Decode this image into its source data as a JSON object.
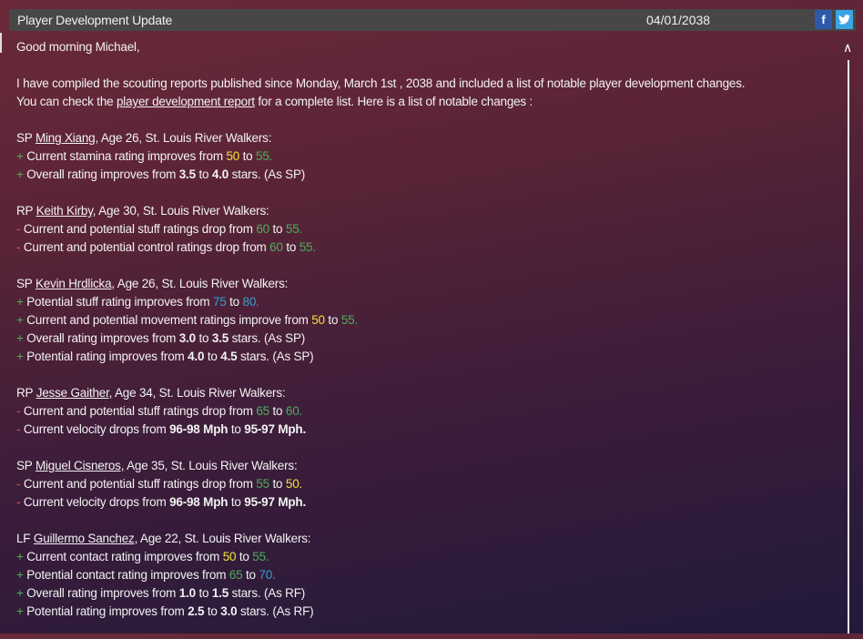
{
  "header": {
    "title": "Player Development Update",
    "date": "04/01/2038",
    "facebook_icon": "f",
    "twitter_icon": "t"
  },
  "colors": {
    "yellow": "#f2e23a",
    "green": "#4cae5a",
    "blue": "#3a9cc8",
    "minus": "#e05050",
    "plus": "#4caf50",
    "header_bg": "#474747"
  },
  "greeting": "Good morning Michael,",
  "intro": {
    "line1": "I have compiled the scouting reports published since Monday, March 1st , 2038 and included a list of notable player development changes.",
    "line2_pre": "You can check the ",
    "line2_link": "player development report",
    "line2_post": " for a complete list. Here is a list of notable changes :"
  },
  "players": [
    {
      "pos": "SP",
      "name": "Ming Xiang,",
      "info": " Age 26, St. Louis River Walkers:",
      "changes": [
        {
          "sign": "+",
          "segs": [
            {
              "t": "Current stamina rating improves from ",
              "s": ""
            },
            {
              "t": "50",
              "s": "y"
            },
            {
              "t": " to ",
              "s": ""
            },
            {
              "t": "55.",
              "s": "g"
            }
          ]
        },
        {
          "sign": "+",
          "segs": [
            {
              "t": "Overall rating improves from ",
              "s": ""
            },
            {
              "t": "3.5",
              "s": "bold"
            },
            {
              "t": " to ",
              "s": ""
            },
            {
              "t": "4.0",
              "s": "bold"
            },
            {
              "t": " stars. (As SP)",
              "s": ""
            }
          ]
        }
      ]
    },
    {
      "pos": "RP",
      "name": "Keith Kirby,",
      "info": " Age 30, St. Louis River Walkers:",
      "changes": [
        {
          "sign": "-",
          "segs": [
            {
              "t": "Current and potential stuff ratings drop from ",
              "s": ""
            },
            {
              "t": "60",
              "s": "g"
            },
            {
              "t": " to ",
              "s": ""
            },
            {
              "t": "55.",
              "s": "g"
            }
          ]
        },
        {
          "sign": "-",
          "segs": [
            {
              "t": "Current and potential control ratings drop from ",
              "s": ""
            },
            {
              "t": "60",
              "s": "g"
            },
            {
              "t": " to ",
              "s": ""
            },
            {
              "t": "55.",
              "s": "g"
            }
          ]
        }
      ]
    },
    {
      "pos": "SP",
      "name": "Kevin Hrdlicka,",
      "info": " Age 26, St. Louis River Walkers:",
      "changes": [
        {
          "sign": "+",
          "segs": [
            {
              "t": "Potential stuff rating improves from ",
              "s": ""
            },
            {
              "t": "75",
              "s": "b"
            },
            {
              "t": " to ",
              "s": ""
            },
            {
              "t": "80.",
              "s": "b"
            }
          ]
        },
        {
          "sign": "+",
          "segs": [
            {
              "t": "Current and potential movement ratings improve from ",
              "s": ""
            },
            {
              "t": "50",
              "s": "y"
            },
            {
              "t": " to ",
              "s": ""
            },
            {
              "t": "55.",
              "s": "g"
            }
          ]
        },
        {
          "sign": "+",
          "segs": [
            {
              "t": "Overall rating improves from ",
              "s": ""
            },
            {
              "t": "3.0",
              "s": "bold"
            },
            {
              "t": " to ",
              "s": ""
            },
            {
              "t": "3.5",
              "s": "bold"
            },
            {
              "t": " stars. (As SP)",
              "s": ""
            }
          ]
        },
        {
          "sign": "+",
          "segs": [
            {
              "t": "Potential rating improves from ",
              "s": ""
            },
            {
              "t": "4.0",
              "s": "bold"
            },
            {
              "t": " to ",
              "s": ""
            },
            {
              "t": "4.5",
              "s": "bold"
            },
            {
              "t": " stars. (As SP)",
              "s": ""
            }
          ]
        }
      ]
    },
    {
      "pos": "RP",
      "name": "Jesse Gaither,",
      "info": " Age 34, St. Louis River Walkers:",
      "changes": [
        {
          "sign": "-",
          "segs": [
            {
              "t": "Current and potential stuff ratings drop from ",
              "s": ""
            },
            {
              "t": "65",
              "s": "g"
            },
            {
              "t": " to ",
              "s": ""
            },
            {
              "t": "60.",
              "s": "g"
            }
          ]
        },
        {
          "sign": "-",
          "segs": [
            {
              "t": "Current velocity drops from ",
              "s": ""
            },
            {
              "t": "96-98 Mph",
              "s": "bold"
            },
            {
              "t": " to ",
              "s": ""
            },
            {
              "t": "95-97 Mph.",
              "s": "bold"
            }
          ]
        }
      ]
    },
    {
      "pos": "SP",
      "name": "Miguel Cisneros,",
      "info": " Age 35, St. Louis River Walkers:",
      "changes": [
        {
          "sign": "-",
          "segs": [
            {
              "t": "Current and potential stuff ratings drop from ",
              "s": ""
            },
            {
              "t": "55",
              "s": "g"
            },
            {
              "t": " to ",
              "s": ""
            },
            {
              "t": "50.",
              "s": "y"
            }
          ]
        },
        {
          "sign": "-",
          "segs": [
            {
              "t": "Current velocity drops from ",
              "s": ""
            },
            {
              "t": "96-98 Mph",
              "s": "bold"
            },
            {
              "t": " to ",
              "s": ""
            },
            {
              "t": "95-97 Mph.",
              "s": "bold"
            }
          ]
        }
      ]
    },
    {
      "pos": "LF",
      "name": "Guillermo Sanchez,",
      "info": " Age 22, St. Louis River Walkers:",
      "changes": [
        {
          "sign": "+",
          "segs": [
            {
              "t": "Current contact rating improves from ",
              "s": ""
            },
            {
              "t": "50",
              "s": "y"
            },
            {
              "t": " to ",
              "s": ""
            },
            {
              "t": "55.",
              "s": "g"
            }
          ]
        },
        {
          "sign": "+",
          "segs": [
            {
              "t": "Potential contact rating improves from ",
              "s": ""
            },
            {
              "t": "65",
              "s": "g"
            },
            {
              "t": " to ",
              "s": ""
            },
            {
              "t": "70.",
              "s": "b"
            }
          ]
        },
        {
          "sign": "+",
          "segs": [
            {
              "t": "Overall rating improves from ",
              "s": ""
            },
            {
              "t": "1.0",
              "s": "bold"
            },
            {
              "t": " to ",
              "s": ""
            },
            {
              "t": "1.5",
              "s": "bold"
            },
            {
              "t": " stars. (As RF)",
              "s": ""
            }
          ]
        },
        {
          "sign": "+",
          "segs": [
            {
              "t": "Potential rating improves from ",
              "s": ""
            },
            {
              "t": "2.5",
              "s": "bold"
            },
            {
              "t": " to ",
              "s": ""
            },
            {
              "t": "3.0",
              "s": "bold"
            },
            {
              "t": " stars. (As RF)",
              "s": ""
            }
          ]
        }
      ]
    }
  ],
  "scrollbar": {
    "up_icon": "^"
  }
}
